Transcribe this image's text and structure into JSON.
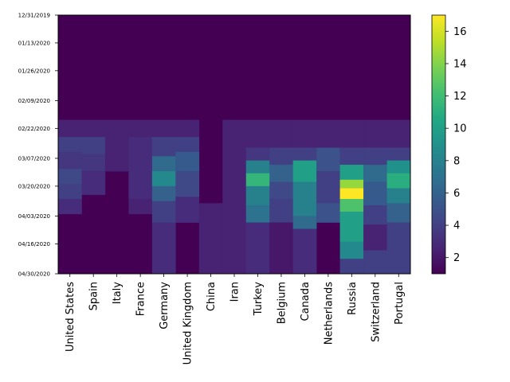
{
  "chart_data": {
    "type": "heatmap",
    "title": "",
    "xlabel": "",
    "ylabel": "",
    "categories": [
      "United States",
      "Spain",
      "Italy",
      "France",
      "Germany",
      "United Kingdom",
      "China",
      "Iran",
      "Turkey",
      "Belgium",
      "Canada",
      "Netherlands",
      "Russia",
      "Switzerland",
      "Portugal"
    ],
    "y_tick_labels": [
      "12/31/2019",
      "01/13/2020",
      "01/26/2020",
      "02/09/2020",
      "02/22/2020",
      "03/07/2020",
      "03/20/2020",
      "04/03/2020",
      "04/16/2020",
      "04/30/2020"
    ],
    "ylim": [
      "12/31/2019",
      "04/30/2020"
    ],
    "colorbar": {
      "ticks": [
        2,
        4,
        6,
        8,
        10,
        12,
        14,
        16
      ],
      "range": [
        1,
        17
      ],
      "colormap": "viridis"
    },
    "base_value": 1,
    "row_blocks": [
      {
        "country": "United States",
        "from": "02/18/2020",
        "to": "02/26/2020",
        "value": 2.5
      },
      {
        "country": "United States",
        "from": "02/26/2020",
        "to": "03/04/2020",
        "value": 4.0
      },
      {
        "country": "United States",
        "from": "03/04/2020",
        "to": "03/12/2020",
        "value": 3.5
      },
      {
        "country": "United States",
        "from": "03/12/2020",
        "to": "03/19/2020",
        "value": 4.5
      },
      {
        "country": "United States",
        "from": "03/19/2020",
        "to": "03/26/2020",
        "value": 4.0
      },
      {
        "country": "United States",
        "from": "03/26/2020",
        "to": "04/02/2020",
        "value": 3.0
      },
      {
        "country": "Spain",
        "from": "02/18/2020",
        "to": "02/26/2020",
        "value": 2.5
      },
      {
        "country": "Spain",
        "from": "02/26/2020",
        "to": "03/05/2020",
        "value": 4.0
      },
      {
        "country": "Spain",
        "from": "03/05/2020",
        "to": "03/13/2020",
        "value": 3.5
      },
      {
        "country": "Spain",
        "from": "03/13/2020",
        "to": "03/24/2020",
        "value": 3.0
      },
      {
        "country": "Italy",
        "from": "02/18/2020",
        "to": "03/13/2020",
        "value": 2.5
      },
      {
        "country": "France",
        "from": "02/18/2020",
        "to": "02/26/2020",
        "value": 2.5
      },
      {
        "country": "France",
        "from": "02/26/2020",
        "to": "03/26/2020",
        "value": 3.0
      },
      {
        "country": "France",
        "from": "03/26/2020",
        "to": "04/02/2020",
        "value": 2.5
      },
      {
        "country": "Germany",
        "from": "02/18/2020",
        "to": "02/26/2020",
        "value": 2.5
      },
      {
        "country": "Germany",
        "from": "02/26/2020",
        "to": "03/06/2020",
        "value": 4.0
      },
      {
        "country": "Germany",
        "from": "03/06/2020",
        "to": "03/13/2020",
        "value": 6.5
      },
      {
        "country": "Germany",
        "from": "03/13/2020",
        "to": "03/20/2020",
        "value": 8.5
      },
      {
        "country": "Germany",
        "from": "03/20/2020",
        "to": "03/27/2020",
        "value": 6.0
      },
      {
        "country": "Germany",
        "from": "03/27/2020",
        "to": "04/06/2020",
        "value": 4.0
      },
      {
        "country": "Germany",
        "from": "04/06/2020",
        "to": "04/30/2020",
        "value": 3.0
      },
      {
        "country": "United Kingdom",
        "from": "02/18/2020",
        "to": "02/26/2020",
        "value": 2.5
      },
      {
        "country": "United Kingdom",
        "from": "02/26/2020",
        "to": "03/04/2020",
        "value": 4.0
      },
      {
        "country": "United Kingdom",
        "from": "03/04/2020",
        "to": "03/13/2020",
        "value": 5.5
      },
      {
        "country": "United Kingdom",
        "from": "03/13/2020",
        "to": "03/25/2020",
        "value": 4.5
      },
      {
        "country": "United Kingdom",
        "from": "03/25/2020",
        "to": "04/06/2020",
        "value": 3.0
      },
      {
        "country": "China",
        "from": "03/28/2020",
        "to": "04/30/2020",
        "value": 2.5
      },
      {
        "country": "Iran",
        "from": "02/18/2020",
        "to": "04/30/2020",
        "value": 2.5
      },
      {
        "country": "Turkey",
        "from": "02/18/2020",
        "to": "03/02/2020",
        "value": 2.5
      },
      {
        "country": "Turkey",
        "from": "03/02/2020",
        "to": "03/08/2020",
        "value": 3.5
      },
      {
        "country": "Turkey",
        "from": "03/08/2020",
        "to": "03/14/2020",
        "value": 8.0
      },
      {
        "country": "Turkey",
        "from": "03/14/2020",
        "to": "03/20/2020",
        "value": 11.5
      },
      {
        "country": "Turkey",
        "from": "03/20/2020",
        "to": "03/29/2020",
        "value": 8.0
      },
      {
        "country": "Turkey",
        "from": "03/29/2020",
        "to": "04/06/2020",
        "value": 7.0
      },
      {
        "country": "Turkey",
        "from": "04/06/2020",
        "to": "04/30/2020",
        "value": 3.0
      },
      {
        "country": "Belgium",
        "from": "02/18/2020",
        "to": "03/02/2020",
        "value": 2.5
      },
      {
        "country": "Belgium",
        "from": "03/02/2020",
        "to": "03/10/2020",
        "value": 4.0
      },
      {
        "country": "Belgium",
        "from": "03/10/2020",
        "to": "03/18/2020",
        "value": 6.0
      },
      {
        "country": "Belgium",
        "from": "03/18/2020",
        "to": "03/26/2020",
        "value": 4.5
      },
      {
        "country": "Belgium",
        "from": "03/26/2020",
        "to": "04/06/2020",
        "value": 4.0
      },
      {
        "country": "Belgium",
        "from": "04/06/2020",
        "to": "04/30/2020",
        "value": 2.0
      },
      {
        "country": "Canada",
        "from": "02/18/2020",
        "to": "03/02/2020",
        "value": 2.5
      },
      {
        "country": "Canada",
        "from": "03/02/2020",
        "to": "03/08/2020",
        "value": 4.0
      },
      {
        "country": "Canada",
        "from": "03/08/2020",
        "to": "03/18/2020",
        "value": 10.0
      },
      {
        "country": "Canada",
        "from": "03/18/2020",
        "to": "04/03/2020",
        "value": 8.0
      },
      {
        "country": "Canada",
        "from": "04/03/2020",
        "to": "04/09/2020",
        "value": 6.5
      },
      {
        "country": "Canada",
        "from": "04/09/2020",
        "to": "04/30/2020",
        "value": 3.0
      },
      {
        "country": "Netherlands",
        "from": "02/18/2020",
        "to": "03/02/2020",
        "value": 2.5
      },
      {
        "country": "Netherlands",
        "from": "03/02/2020",
        "to": "03/13/2020",
        "value": 5.0
      },
      {
        "country": "Netherlands",
        "from": "03/13/2020",
        "to": "03/28/2020",
        "value": 4.0
      },
      {
        "country": "Netherlands",
        "from": "03/28/2020",
        "to": "04/06/2020",
        "value": 5.0
      },
      {
        "country": "Russia",
        "from": "02/18/2020",
        "to": "03/02/2020",
        "value": 2.5
      },
      {
        "country": "Russia",
        "from": "03/02/2020",
        "to": "03/10/2020",
        "value": 4.0
      },
      {
        "country": "Russia",
        "from": "03/10/2020",
        "to": "03/17/2020",
        "value": 10.0
      },
      {
        "country": "Russia",
        "from": "03/17/2020",
        "to": "03/21/2020",
        "value": 14.5
      },
      {
        "country": "Russia",
        "from": "03/21/2020",
        "to": "03/26/2020",
        "value": 17.0
      },
      {
        "country": "Russia",
        "from": "03/26/2020",
        "to": "04/01/2020",
        "value": 12.5
      },
      {
        "country": "Russia",
        "from": "04/01/2020",
        "to": "04/15/2020",
        "value": 10.0
      },
      {
        "country": "Russia",
        "from": "04/15/2020",
        "to": "04/23/2020",
        "value": 8.5
      },
      {
        "country": "Russia",
        "from": "04/23/2020",
        "to": "04/30/2020",
        "value": 4.0
      },
      {
        "country": "Switzerland",
        "from": "02/18/2020",
        "to": "03/02/2020",
        "value": 2.5
      },
      {
        "country": "Switzerland",
        "from": "03/02/2020",
        "to": "03/10/2020",
        "value": 4.0
      },
      {
        "country": "Switzerland",
        "from": "03/10/2020",
        "to": "03/18/2020",
        "value": 6.5
      },
      {
        "country": "Switzerland",
        "from": "03/18/2020",
        "to": "03/29/2020",
        "value": 5.5
      },
      {
        "country": "Switzerland",
        "from": "03/29/2020",
        "to": "04/07/2020",
        "value": 4.0
      },
      {
        "country": "Switzerland",
        "from": "04/07/2020",
        "to": "04/19/2020",
        "value": 2.5
      },
      {
        "country": "Switzerland",
        "from": "04/19/2020",
        "to": "04/30/2020",
        "value": 4.0
      },
      {
        "country": "Portugal",
        "from": "02/18/2020",
        "to": "03/02/2020",
        "value": 2.5
      },
      {
        "country": "Portugal",
        "from": "03/02/2020",
        "to": "03/08/2020",
        "value": 4.0
      },
      {
        "country": "Portugal",
        "from": "03/08/2020",
        "to": "03/14/2020",
        "value": 9.0
      },
      {
        "country": "Portugal",
        "from": "03/14/2020",
        "to": "03/21/2020",
        "value": 11.0
      },
      {
        "country": "Portugal",
        "from": "03/21/2020",
        "to": "03/28/2020",
        "value": 8.0
      },
      {
        "country": "Portugal",
        "from": "03/28/2020",
        "to": "04/06/2020",
        "value": 6.0
      },
      {
        "country": "Portugal",
        "from": "04/06/2020",
        "to": "04/30/2020",
        "value": 4.0
      }
    ]
  }
}
